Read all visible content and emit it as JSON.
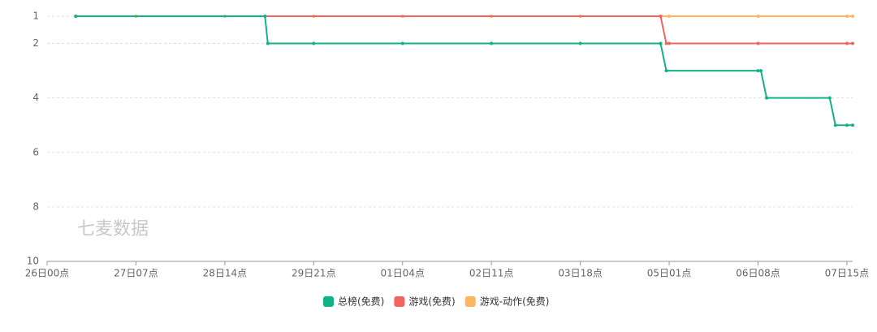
{
  "chart_data": {
    "type": "line",
    "watermark": "七麦数据",
    "xlim": [
      0,
      281
    ],
    "xticks": [
      {
        "value": 0,
        "label": "26日00点"
      },
      {
        "value": 31,
        "label": "27日07点"
      },
      {
        "value": 62,
        "label": "28日14点"
      },
      {
        "value": 93,
        "label": "29日21点"
      },
      {
        "value": 124,
        "label": "01日04点"
      },
      {
        "value": 155,
        "label": "02日11点"
      },
      {
        "value": 186,
        "label": "03日18点"
      },
      {
        "value": 217,
        "label": "05日01点"
      },
      {
        "value": 248,
        "label": "06日08点"
      },
      {
        "value": 279,
        "label": "07日15点"
      }
    ],
    "ylim": [
      10,
      1
    ],
    "yticks": [
      1,
      2,
      4,
      6,
      8,
      10
    ],
    "grid": true,
    "series": [
      {
        "name": "总榜(免费)",
        "color": "#12b289",
        "x": [
          10,
          76,
          77,
          93,
          124,
          155,
          186,
          214,
          216,
          248,
          249,
          251,
          273,
          275,
          279,
          281
        ],
        "values": [
          1,
          1,
          2,
          2,
          2,
          2,
          2,
          2,
          3,
          3,
          3,
          4,
          4,
          5,
          5,
          5
        ]
      },
      {
        "name": "游戏(免费)",
        "color": "#f2645e",
        "x": [
          10,
          214,
          216,
          217,
          248,
          279,
          281
        ],
        "values": [
          1,
          1,
          2,
          2,
          2,
          2,
          2
        ]
      },
      {
        "name": "游戏-动作(免费)",
        "color": "#fdb55e",
        "x": [
          10,
          31,
          62,
          93,
          124,
          155,
          186,
          217,
          248,
          279,
          281
        ],
        "values": [
          1,
          1,
          1,
          1,
          1,
          1,
          1,
          1,
          1,
          1,
          1
        ]
      }
    ]
  }
}
